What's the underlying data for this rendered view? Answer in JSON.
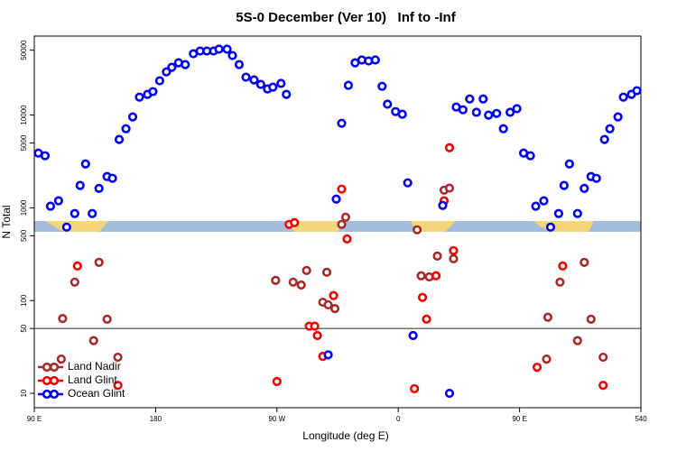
{
  "chart_data": {
    "type": "scatter",
    "title": "5S-0 December (Ver 10)   Inf to -Inf",
    "xlabel": "Longitude (deg E)",
    "ylabel": "N Total",
    "xlim": [
      90,
      540
    ],
    "xticks": [
      {
        "value": 90,
        "label": "90 E"
      },
      180,
      {
        "value": 270,
        "label": "90 W"
      },
      {
        "value": 360,
        "label": "0"
      },
      {
        "value": 450,
        "label": "90 E"
      },
      540
    ],
    "ylim": [
      7,
      71000
    ],
    "yscale": "log",
    "yticks": [
      10,
      50,
      100,
      500,
      1000,
      5000,
      10000,
      50000
    ],
    "hline": 50,
    "legend": "lower left",
    "series": [
      {
        "name": "Land Nadir",
        "color": "#a52a2a",
        "x": [
          111,
          120,
          134,
          138,
          144,
          152,
          110,
          269,
          282,
          288,
          292,
          304,
          308,
          313,
          307,
          318,
          321,
          374,
          377,
          383,
          389,
          394,
          398,
          401,
          471,
          480,
          493,
          498,
          503,
          512,
          470
        ],
        "values": [
          64,
          158,
          37,
          258,
          63,
          24.5,
          23.4,
          165,
          158,
          147,
          211,
          96,
          90,
          82,
          202,
          662,
          792,
          579,
          185,
          180,
          302,
          1550,
          1630,
          282,
          66,
          158,
          37,
          258,
          63,
          24.5,
          23.4
        ]
      },
      {
        "name": "Land Glint",
        "color": "#ee0000",
        "x": [
          122,
          152,
          270,
          279,
          283,
          294,
          298,
          300,
          304,
          312,
          318,
          322,
          372,
          378,
          381,
          388,
          394,
          398,
          401,
          463,
          482,
          512
        ],
        "values": [
          236,
          12.2,
          13.4,
          662,
          692,
          53,
          53,
          42,
          25,
          113,
          1590,
          462,
          11.2,
          108,
          63,
          185,
          1190,
          4450,
          345,
          19.1,
          236,
          12.2
        ]
      },
      {
        "name": "Ocean Glint",
        "color": "#0000ee",
        "x": [
          93,
          98,
          102,
          108,
          114,
          120,
          128,
          124,
          133,
          138,
          144,
          148,
          153,
          158,
          163,
          168,
          174,
          178,
          183,
          188,
          192,
          197,
          202,
          208,
          213,
          218,
          223,
          227,
          233,
          237,
          242,
          247,
          253,
          258,
          263,
          267,
          273,
          277,
          318,
          314,
          323,
          328,
          333,
          338,
          343,
          348,
          352,
          358,
          363,
          367,
          371,
          393,
          398,
          403,
          408,
          413,
          418,
          423,
          427,
          433,
          438,
          443,
          448,
          453,
          458,
          462,
          468,
          473,
          479,
          487,
          483,
          493,
          498,
          503,
          507,
          513,
          517,
          523,
          527,
          533,
          537,
          308
        ],
        "values": [
          3890,
          3640,
          1040,
          1190,
          619,
          867,
          2970,
          1740,
          867,
          1620,
          2170,
          2080,
          5450,
          7120,
          9550,
          15600,
          16700,
          17900,
          23400,
          29200,
          32700,
          36600,
          35000,
          45800,
          49000,
          49000,
          49000,
          51300,
          51300,
          43800,
          35000,
          25600,
          23900,
          21400,
          19100,
          20000,
          21900,
          16700,
          8150,
          1240,
          20900,
          36600,
          39200,
          38300,
          39200,
          20400,
          13100,
          10900,
          10200,
          1860,
          42,
          1060,
          10,
          12200,
          11400,
          14900,
          10700,
          14900,
          9980,
          10400,
          7120,
          10700,
          11700,
          3890,
          3640,
          1040,
          1190,
          619,
          867,
          2970,
          1740,
          867,
          1620,
          2170,
          2080,
          5450,
          7120,
          9550,
          15600,
          16700,
          18300,
          26
        ]
      }
    ]
  }
}
